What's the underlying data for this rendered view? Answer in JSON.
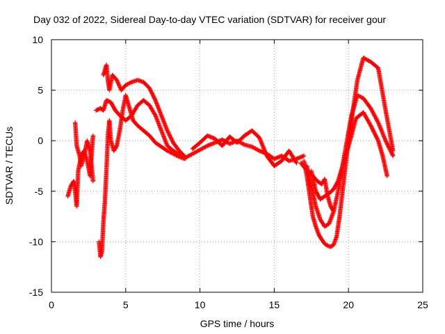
{
  "chart_data": {
    "type": "scatter",
    "title": "Day 032 of 2022, Sidereal Day-to-day VTEC variation (SDTVAR) for receiver gour",
    "xlabel": "GPS time / hours",
    "ylabel": "SDTVAR / TECUs",
    "xlim": [
      0,
      25
    ],
    "ylim": [
      -15,
      10
    ],
    "xticks": [
      "0",
      "5",
      "10",
      "15",
      "20",
      "25"
    ],
    "yticks": [
      "-15",
      "-10",
      "-5",
      "0",
      "5",
      "10"
    ],
    "xtick_values": [
      0,
      5,
      10,
      15,
      20,
      25
    ],
    "ytick_values": [
      -15,
      -10,
      -5,
      0,
      5,
      10
    ],
    "grid": true,
    "marker": "+",
    "color": "#ff0000",
    "series": [
      {
        "name": "track-1",
        "x": [
          1.1,
          1.3,
          1.5,
          1.6,
          1.7,
          1.8,
          2.0,
          2.2,
          2.4,
          2.6,
          2.8
        ],
        "y": [
          -5.5,
          -4.5,
          -4.0,
          -5.0,
          -6.5,
          -3.0,
          -1.5,
          -1.0,
          -2.0,
          -3.5,
          0.5
        ]
      },
      {
        "name": "track-2",
        "x": [
          1.6,
          1.7,
          1.8,
          1.9,
          2.0,
          2.2,
          2.4,
          2.6,
          2.8
        ],
        "y": [
          1.8,
          -0.5,
          -1.0,
          -1.5,
          -2.5,
          -1.5,
          0.0,
          -1.0,
          -4.0
        ]
      },
      {
        "name": "track-3",
        "x": [
          3.2,
          3.3,
          3.4,
          3.5,
          3.6,
          3.7,
          3.8,
          3.9,
          4.0,
          4.2,
          4.4,
          4.6,
          4.8,
          5.0,
          5.2,
          5.5,
          5.8,
          6.2,
          6.6,
          7.0,
          7.4,
          7.8,
          8.2,
          8.6,
          9.0
        ],
        "y": [
          -10.0,
          -11.5,
          -11.0,
          -8.0,
          -6.0,
          -3.0,
          0.5,
          2.0,
          0.0,
          -1.0,
          -0.5,
          1.0,
          3.0,
          4.5,
          3.5,
          2.0,
          1.5,
          1.0,
          0.5,
          -0.2,
          -0.6,
          -1.0,
          -1.3,
          -1.6,
          -1.8
        ]
      },
      {
        "name": "track-4",
        "x": [
          3.0,
          3.3,
          3.5,
          3.7,
          4.0,
          4.3,
          4.6,
          5.0,
          5.4,
          5.8,
          6.2,
          6.6,
          7.0,
          7.4,
          7.8,
          8.2,
          8.6,
          9.0
        ],
        "y": [
          3.0,
          3.2,
          3.0,
          4.0,
          3.8,
          3.0,
          2.5,
          2.0,
          2.5,
          3.5,
          4.0,
          3.5,
          2.5,
          1.0,
          -0.5,
          -1.0,
          -1.4,
          -1.7
        ]
      },
      {
        "name": "track-5",
        "x": [
          3.5,
          3.7,
          3.8,
          3.9,
          4.1,
          4.4,
          4.7,
          5.0,
          5.4,
          5.8,
          6.2,
          6.6,
          7.0,
          7.4,
          7.8,
          8.2,
          8.6,
          9.0
        ],
        "y": [
          6.5,
          7.5,
          6.0,
          5.0,
          6.5,
          6.0,
          5.0,
          5.5,
          5.8,
          6.0,
          5.8,
          5.2,
          4.0,
          2.5,
          1.0,
          -0.2,
          -1.0,
          -1.6
        ]
      },
      {
        "name": "track-6",
        "x": [
          9.0,
          9.5,
          10.0,
          10.5,
          11.0,
          11.5,
          12.0,
          12.5,
          13.0,
          13.5,
          14.0,
          14.5,
          15.0,
          15.5,
          16.0,
          16.5,
          17.0
        ],
        "y": [
          -1.7,
          -1.3,
          -0.9,
          -0.5,
          -0.2,
          0.1,
          -0.3,
          0.0,
          -0.4,
          -0.6,
          -1.0,
          -1.3,
          -1.8,
          -1.5,
          -2.0,
          -1.8,
          -1.5
        ]
      },
      {
        "name": "track-7",
        "x": [
          9.5,
          10.0,
          10.5,
          11.0,
          11.5,
          12.0,
          12.5,
          13.0,
          13.5,
          14.0,
          14.5,
          15.0,
          15.5,
          16.0,
          16.5
        ],
        "y": [
          -0.8,
          -0.2,
          0.5,
          0.2,
          -0.5,
          0.4,
          -0.2,
          0.5,
          1.0,
          0.3,
          -1.5,
          -2.5,
          -2.0,
          -1.0,
          -2.2
        ]
      },
      {
        "name": "track-8",
        "x": [
          17.0,
          17.2,
          17.4,
          17.6,
          17.8,
          18.0,
          18.2,
          18.4,
          18.6,
          18.8,
          19.0,
          19.2,
          19.4,
          19.6,
          19.8,
          20.0,
          20.3,
          20.6,
          21.0,
          21.5,
          22.0,
          22.5,
          23.0
        ],
        "y": [
          -2.0,
          -3.5,
          -5.5,
          -7.5,
          -8.5,
          -9.3,
          -9.8,
          -10.2,
          -10.4,
          -10.5,
          -10.3,
          -9.5,
          -7.5,
          -5.0,
          -2.5,
          0.0,
          3.0,
          6.0,
          8.2,
          7.8,
          7.2,
          3.0,
          -1.0
        ]
      },
      {
        "name": "track-9",
        "x": [
          17.2,
          17.5,
          17.8,
          18.1,
          18.4,
          18.7,
          19.0,
          19.3,
          19.6,
          19.9,
          20.2,
          20.6,
          21.0,
          21.5,
          22.0,
          22.5,
          23.0
        ],
        "y": [
          -2.5,
          -4.5,
          -6.5,
          -7.8,
          -8.5,
          -8.2,
          -7.0,
          -5.0,
          -2.5,
          0.0,
          2.5,
          4.5,
          4.2,
          3.2,
          1.8,
          0.0,
          -1.5
        ]
      },
      {
        "name": "track-10",
        "x": [
          17.5,
          17.8,
          18.1,
          18.4,
          18.7,
          19.0,
          19.3,
          19.6,
          19.9,
          20.2,
          20.5,
          21.0,
          21.5,
          22.0,
          22.3,
          22.6
        ],
        "y": [
          -3.0,
          -5.0,
          -5.8,
          -5.5,
          -5.2,
          -4.8,
          -4.0,
          -2.5,
          -1.0,
          0.5,
          2.2,
          2.8,
          1.5,
          0.0,
          -1.5,
          -3.5
        ]
      },
      {
        "name": "track-11",
        "x": [
          16.8,
          17.0,
          17.3,
          17.6,
          17.9,
          18.2,
          18.4,
          18.6,
          18.8,
          19.0
        ],
        "y": [
          -2.2,
          -2.6,
          -3.0,
          -3.5,
          -4.0,
          -4.3,
          -3.8,
          -5.5,
          -6.5,
          -7.0
        ]
      }
    ]
  }
}
